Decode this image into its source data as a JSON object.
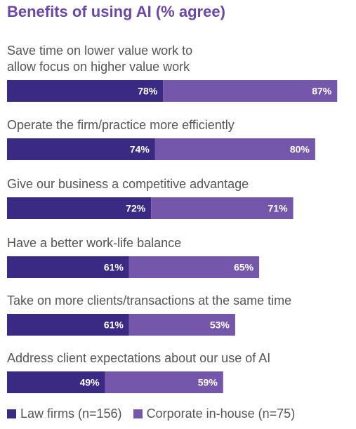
{
  "chart_data": {
    "type": "bar",
    "stacked": true,
    "orientation": "horizontal",
    "title": "Benefits of using AI (% agree)",
    "categories": [
      [
        "Save time on lower value work to",
        "allow focus on higher value work"
      ],
      [
        "Operate the firm/practice more efficiently"
      ],
      [
        "Give our business a competitive advantage"
      ],
      [
        "Have a better work-life balance"
      ],
      [
        "Take on more clients/transactions at the same time"
      ],
      [
        "Address client expectations about our use of AI"
      ]
    ],
    "series": [
      {
        "name": "Law firms (n=156)",
        "values": [
          78,
          74,
          72,
          61,
          61,
          49
        ],
        "color": "#3b2a84"
      },
      {
        "name": "Corporate in-house (n=75)",
        "values": [
          87,
          80,
          71,
          65,
          53,
          59
        ],
        "color": "#7456ab"
      }
    ],
    "value_suffix": "%",
    "legend_position": "bottom-left",
    "grid": false
  }
}
